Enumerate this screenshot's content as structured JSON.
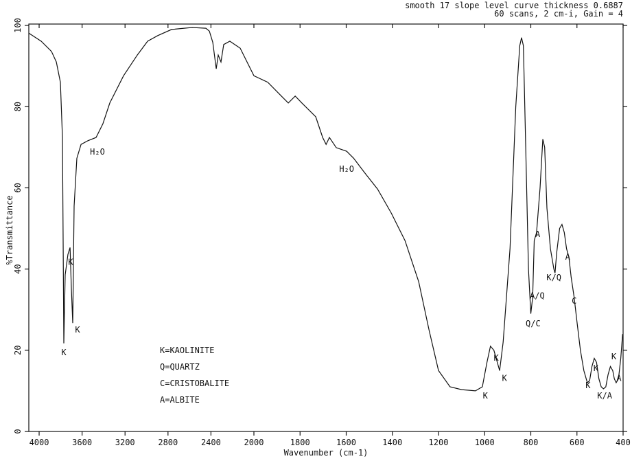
{
  "chart_data": {
    "type": "line",
    "notes": [
      "smooth 17 slope level curve thickness 0.6887",
      "60 scans, 2 cm-i, Gain = 4"
    ],
    "xlabel": "Wavenumber (cm-1)",
    "ylabel": "%Transmittance",
    "xlim": [
      4096,
      400
    ],
    "xbreak": 2000,
    "ylim": [
      0,
      100
    ],
    "xticks": [
      4000,
      3600,
      3200,
      2800,
      2400,
      2000,
      1800,
      1600,
      1400,
      1200,
      1000,
      800,
      600,
      400
    ],
    "yticks": [
      0,
      20,
      40,
      60,
      80,
      100
    ],
    "color": "#111111",
    "x": [
      4096,
      3981,
      3885,
      3840,
      3802,
      3783,
      3770,
      3757,
      3732,
      3712,
      3700,
      3687,
      3674,
      3649,
      3610,
      3546,
      3470,
      3406,
      3342,
      3214,
      3086,
      2990,
      2895,
      2767,
      2575,
      2447,
      2415,
      2383,
      2351,
      2332,
      2307,
      2281,
      2224,
      2128,
      2000,
      1940,
      1881,
      1851,
      1821,
      1792,
      1732,
      1702,
      1687,
      1673,
      1643,
      1598,
      1568,
      1524,
      1464,
      1405,
      1345,
      1286,
      1241,
      1200,
      1150,
      1100,
      1040,
      1010,
      990,
      975,
      960,
      945,
      935,
      920,
      890,
      865,
      848,
      840,
      832,
      822,
      810,
      800,
      792,
      785,
      775,
      760,
      748,
      740,
      730,
      715,
      700,
      695,
      688,
      675,
      665,
      655,
      645,
      635,
      625,
      612,
      600,
      585,
      570,
      555,
      545,
      535,
      525,
      515,
      505,
      495,
      485,
      475,
      465,
      455,
      445,
      438,
      430,
      420,
      410,
      402
    ],
    "values": [
      98.1,
      96.1,
      93.6,
      91.0,
      86.0,
      72.4,
      21.7,
      38.6,
      43.6,
      45.3,
      35.2,
      26.7,
      55.5,
      67.3,
      70.7,
      71.6,
      72.4,
      75.8,
      80.9,
      87.6,
      92.7,
      96.1,
      97.5,
      99.0,
      99.5,
      99.3,
      98.6,
      95.8,
      89.3,
      92.7,
      91.0,
      95.3,
      96.1,
      94.4,
      87.6,
      86.0,
      82.6,
      80.9,
      82.6,
      80.9,
      77.5,
      72.4,
      70.7,
      72.4,
      69.9,
      69.0,
      67.3,
      64.0,
      59.7,
      53.8,
      47.0,
      36.9,
      25.0,
      15,
      11,
      10.3,
      10.0,
      11,
      17,
      21,
      20,
      17,
      15,
      22,
      45,
      80,
      95,
      97,
      95,
      70,
      40,
      29,
      33,
      47,
      49,
      60,
      72,
      70,
      55,
      45,
      40,
      39,
      44,
      50,
      51,
      49,
      45,
      43,
      38,
      33,
      27,
      20,
      15,
      12,
      12.5,
      16,
      18,
      17,
      13,
      11,
      10.5,
      11,
      14,
      16,
      15,
      13,
      12,
      13,
      18,
      24
    ],
    "annotations": [
      {
        "text": "K",
        "x": 3770,
        "y": 18.8
      },
      {
        "text": "K",
        "x": 3706,
        "y": 41
      },
      {
        "text": "K",
        "x": 3642,
        "y": 24.4
      },
      {
        "text": "H₂O",
        "x": 3457,
        "y": 68.2
      },
      {
        "text": "H₂O",
        "x": 1598,
        "y": 64
      },
      {
        "text": "K",
        "x": 997,
        "y": 8.1
      },
      {
        "text": "K",
        "x": 950,
        "y": 17.4
      },
      {
        "text": "K",
        "x": 914,
        "y": 12.4
      },
      {
        "text": "Q/C",
        "x": 790,
        "y": 25.9
      },
      {
        "text": "A/Q",
        "x": 772,
        "y": 32.7
      },
      {
        "text": "A",
        "x": 770,
        "y": 47.9
      },
      {
        "text": "K/Q",
        "x": 700,
        "y": 37.2
      },
      {
        "text": "A",
        "x": 640,
        "y": 42.3
      },
      {
        "text": "C",
        "x": 612,
        "y": 31.5
      },
      {
        "text": "K",
        "x": 552,
        "y": 10.7
      },
      {
        "text": "K",
        "x": 518,
        "y": 14.9
      },
      {
        "text": "K/A",
        "x": 480,
        "y": 8.1
      },
      {
        "text": "K",
        "x": 440,
        "y": 17.8
      },
      {
        "text": "A",
        "x": 418,
        "y": 12.4
      }
    ],
    "legend_notes": [
      "K=KAOLINITE",
      "Q=QUARTZ",
      "C=CRISTOBALITE",
      "A=ALBITE"
    ]
  }
}
